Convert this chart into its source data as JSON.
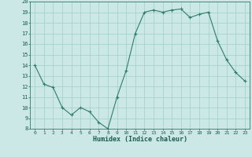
{
  "x": [
    0,
    1,
    2,
    3,
    4,
    5,
    6,
    7,
    8,
    9,
    10,
    11,
    12,
    13,
    14,
    15,
    16,
    17,
    18,
    19,
    20,
    21,
    22,
    23
  ],
  "y": [
    14.0,
    12.2,
    11.9,
    10.0,
    9.3,
    10.0,
    9.6,
    8.6,
    8.0,
    11.0,
    13.5,
    17.0,
    19.0,
    19.2,
    19.0,
    19.2,
    19.3,
    18.5,
    18.8,
    19.0,
    16.3,
    14.5,
    13.3,
    12.5
  ],
  "title": "",
  "xlabel": "Humidex (Indice chaleur)",
  "ylabel": "",
  "xlim": [
    -0.5,
    23.5
  ],
  "ylim": [
    8,
    20
  ],
  "yticks": [
    8,
    9,
    10,
    11,
    12,
    13,
    14,
    15,
    16,
    17,
    18,
    19,
    20
  ],
  "xticks": [
    0,
    1,
    2,
    3,
    4,
    5,
    6,
    7,
    8,
    9,
    10,
    11,
    12,
    13,
    14,
    15,
    16,
    17,
    18,
    19,
    20,
    21,
    22,
    23
  ],
  "line_color": "#2e7d6e",
  "bg_color": "#cce8e6",
  "grid_color": "#9fcfcc"
}
